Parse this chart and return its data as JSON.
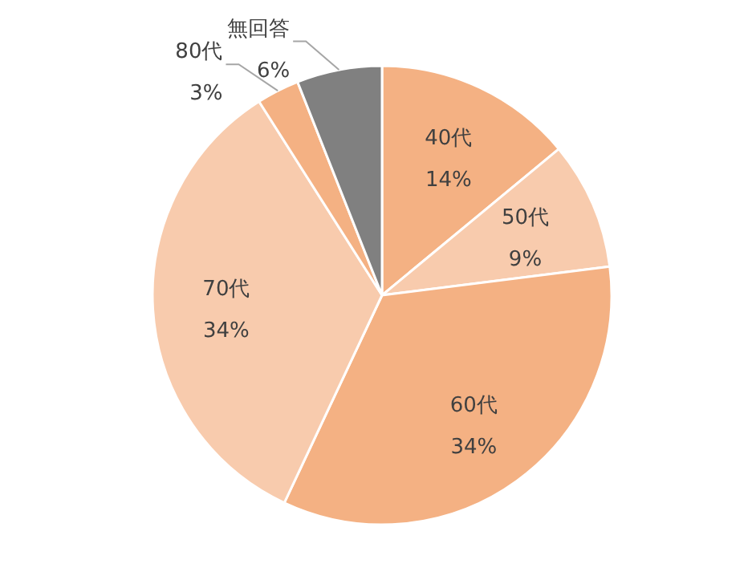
{
  "chart_data": {
    "type": "pie",
    "categories": [
      "40代",
      "50代",
      "60代",
      "70代",
      "80代",
      "無回答"
    ],
    "values": [
      14,
      9,
      34,
      34,
      3,
      6
    ],
    "colors": [
      "#f4b183",
      "#f8cbad",
      "#f4b183",
      "#f8cbad",
      "#f4b183",
      "#808080"
    ],
    "value_labels": [
      "14%",
      "9%",
      "34%",
      "34%",
      "3%",
      "6%"
    ]
  }
}
